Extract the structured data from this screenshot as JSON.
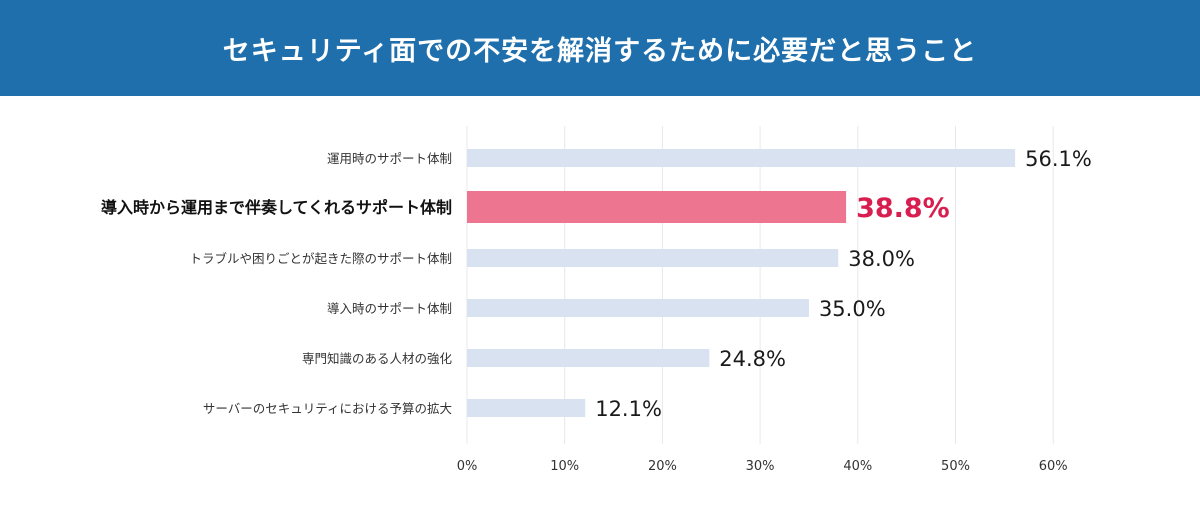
{
  "header": {
    "title": "セキュリティ面での不安を解消するために必要だと思うこと"
  },
  "colors": {
    "header_bg": "#1e6fac",
    "bar_default": "#d9e2f1",
    "bar_highlight": "#ee7590",
    "value_highlight": "#d81e4f",
    "grid": "#e8e8ec"
  },
  "chart_data": {
    "type": "bar",
    "orientation": "horizontal",
    "title": "セキュリティ面での不安を解消するために必要だと思うこと",
    "categories": [
      "運用時のサポート体制",
      "導入時から運用まで伴奏してくれるサポート体制",
      "トラブルや困りごとが起きた際のサポート体制",
      "導入時のサポート体制",
      "専門知識のある人材の強化",
      "サーバーのセキュリティにおける予算の拡大"
    ],
    "values": [
      56.1,
      38.8,
      38.0,
      35.0,
      24.8,
      12.1
    ],
    "value_labels": [
      "56.1%",
      "38.8%",
      "38.0%",
      "35.0%",
      "24.8%",
      "12.1%"
    ],
    "highlight_index": 1,
    "xlim": [
      0,
      60
    ],
    "ticks": [
      0,
      10,
      20,
      30,
      40,
      50,
      60
    ],
    "tick_labels": [
      "0%",
      "10%",
      "20%",
      "30%",
      "40%",
      "50%",
      "60%"
    ],
    "grid": true,
    "xlabel": "",
    "ylabel": ""
  }
}
